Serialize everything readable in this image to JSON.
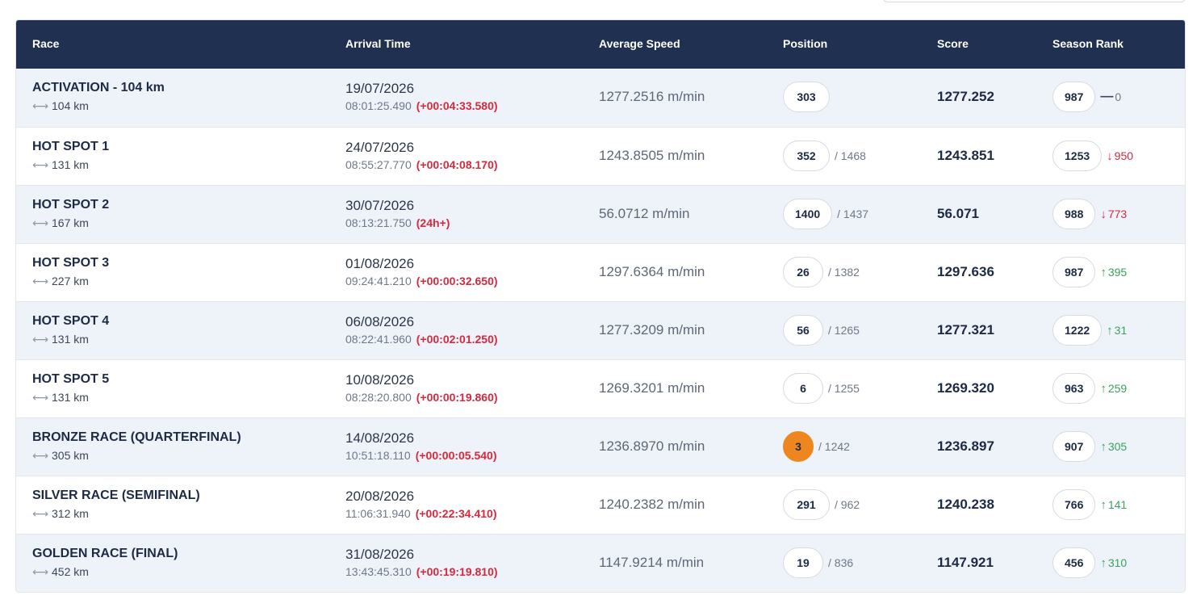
{
  "table": {
    "headers": {
      "race": "Race",
      "arrival": "Arrival Time",
      "speed": "Average Speed",
      "position": "Position",
      "score": "Score",
      "rank": "Season Rank"
    },
    "rows": [
      {
        "name": "ACTIVATION - 104 km",
        "distance": "104 km",
        "date": "19/07/2026",
        "time": "08:01:25.490",
        "delta": "(+00:04:33.580)",
        "speed": "1277.2516 m/min",
        "position": "303",
        "total": "",
        "score": "1277.252",
        "rank": "987",
        "trend": "flat",
        "change": "0"
      },
      {
        "name": "HOT SPOT 1",
        "distance": "131 km",
        "date": "24/07/2026",
        "time": "08:55:27.770",
        "delta": "(+00:04:08.170)",
        "speed": "1243.8505 m/min",
        "position": "352",
        "total": "/ 1468",
        "score": "1243.851",
        "rank": "1253",
        "trend": "down",
        "change": "950"
      },
      {
        "name": "HOT SPOT 2",
        "distance": "167 km",
        "date": "30/07/2026",
        "time": "08:13:21.750",
        "delta": "(24h+)",
        "speed": "56.0712 m/min",
        "position": "1400",
        "total": "/ 1437",
        "score": "56.071",
        "rank": "988",
        "trend": "down",
        "change": "773"
      },
      {
        "name": "HOT SPOT 3",
        "distance": "227 km",
        "date": "01/08/2026",
        "time": "09:24:41.210",
        "delta": "(+00:00:32.650)",
        "speed": "1297.6364 m/min",
        "position": "26",
        "total": "/ 1382",
        "score": "1297.636",
        "rank": "987",
        "trend": "up",
        "change": "395"
      },
      {
        "name": "HOT SPOT 4",
        "distance": "131 km",
        "date": "06/08/2026",
        "time": "08:22:41.960",
        "delta": "(+00:02:01.250)",
        "speed": "1277.3209 m/min",
        "position": "56",
        "total": "/ 1265",
        "score": "1277.321",
        "rank": "1222",
        "trend": "up",
        "change": "31"
      },
      {
        "name": "HOT SPOT 5",
        "distance": "131 km",
        "date": "10/08/2026",
        "time": "08:28:20.800",
        "delta": "(+00:00:19.860)",
        "speed": "1269.3201 m/min",
        "position": "6",
        "total": "/ 1255",
        "score": "1269.320",
        "rank": "963",
        "trend": "up",
        "change": "259"
      },
      {
        "name": "BRONZE RACE (QUARTERFINAL)",
        "distance": "305 km",
        "date": "14/08/2026",
        "time": "10:51:18.110",
        "delta": "(+00:00:05.540)",
        "speed": "1236.8970 m/min",
        "position": "3",
        "total": "/ 1242",
        "score": "1236.897",
        "rank": "907",
        "trend": "up",
        "change": "305",
        "medal": "bronze"
      },
      {
        "name": "SILVER RACE (SEMIFINAL)",
        "distance": "312 km",
        "date": "20/08/2026",
        "time": "11:06:31.940",
        "delta": "(+00:22:34.410)",
        "speed": "1240.2382 m/min",
        "position": "291",
        "total": "/ 962",
        "score": "1240.238",
        "rank": "766",
        "trend": "up",
        "change": "141"
      },
      {
        "name": "GOLDEN RACE (FINAL)",
        "distance": "452 km",
        "date": "31/08/2026",
        "time": "13:43:45.310",
        "delta": "(+00:19:19.810)",
        "speed": "1147.9214 m/min",
        "position": "19",
        "total": "/ 836",
        "score": "1147.921",
        "rank": "456",
        "trend": "up",
        "change": "310"
      }
    ]
  },
  "icons": {
    "distance": "left-right-arrow-icon",
    "trend_up": "arrow-up-icon",
    "trend_down": "arrow-down-icon",
    "trend_flat": "dash-icon"
  },
  "colors": {
    "header_bg": "#1f3050",
    "alt_row_bg": "#eef3fa",
    "delta_red": "#d8283c",
    "trend_up_green": "#3aa35a",
    "trend_down_red": "#d8283c",
    "position_highlight": "#ee8620"
  }
}
